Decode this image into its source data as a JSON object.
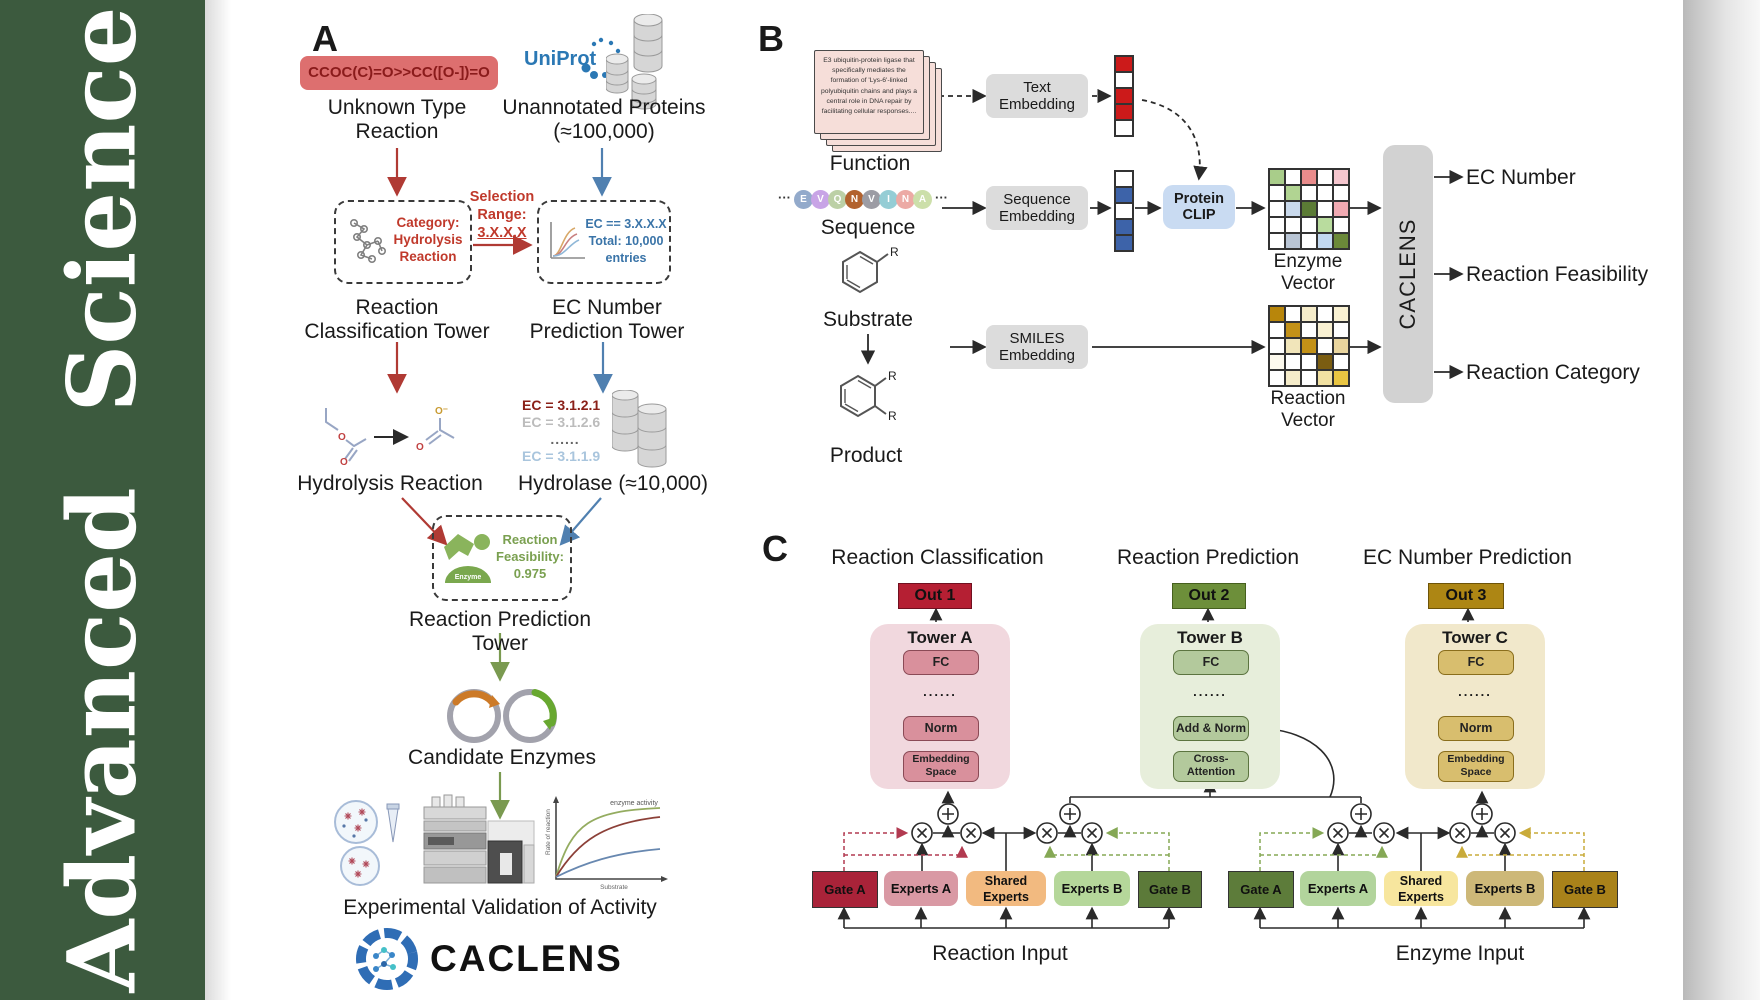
{
  "colors": {
    "sidebar": "#3c5a3e",
    "smilesBox": "#dd6f6f",
    "smilesText": "#8a1b1b",
    "arrowRed": "#b03a34",
    "arrowBlue": "#5080b0",
    "arrowGreen": "#7a9a50",
    "uniprot": "#2b78b4",
    "ecRed": "#8a2018",
    "ecGray": "#bcbcbc",
    "ecBlue": "#a9c5dd",
    "feasGreen": "#7aa050",
    "outA": "#b51f33",
    "outB": "#6d8f3a",
    "outC": "#ad8614",
    "towerA": "#f1d8de",
    "towerABox": "#d9909c",
    "towerABorder": "#8a4a56",
    "towerB": "#e7eedb",
    "towerBBox": "#b3c99c",
    "towerBBorder": "#5c7440",
    "towerC": "#f1e8cb",
    "towerCBox": "#d8be6e",
    "towerCBorder": "#8a6e1c",
    "gateA1": "#a92339",
    "expA1": "#d999a4",
    "shared1": "#f2ba80",
    "expB1": "#b5d79a",
    "gateB1": "#5c7a39",
    "gateA2": "#5d7c3a",
    "expA2": "#b2d49c",
    "shared2": "#f7e69e",
    "expB2": "#cdb878",
    "gateB2": "#a9821a",
    "dashCrimson": "#b23a50",
    "dashGreen": "#85a855",
    "dashGold": "#c9ab3a",
    "clipBox": "#c9dbf2",
    "grayBox": "#dcdcdc",
    "caclensBox": "#d2d2d2"
  },
  "sidebar": {
    "title": "Advanced  Science"
  },
  "panelA": {
    "label": "A",
    "smiles": "CCOC(C)=O>>CC([O-])=O",
    "unknown_reaction": "Unknown Type Reaction",
    "uniprot": "UniProt",
    "unannotated_proteins": "Unannotated Proteins (≈100,000)",
    "selection_lines": [
      "Selection",
      "Range:",
      "3.X.X.X"
    ],
    "category_text": "Category: Hydrolysis Reaction",
    "ec_box_lines": [
      "EC == 3.X.X.X",
      "Total: 10,000",
      "entries"
    ],
    "classification_tower": "Reaction Classification Tower",
    "ec_prediction_tower": "EC Number Prediction Tower",
    "hydrolysis_reaction": "Hydrolysis Reaction",
    "ec_list": [
      "EC = 3.1.2.1",
      "EC = 3.1.2.6",
      "......",
      "EC = 3.1.1.9"
    ],
    "hydrolase": "Hydrolase (≈10,000)",
    "enzyme_badge": "Enzyme",
    "feasibility_text": "Reaction Feasibility: 0.975",
    "reaction_prediction_tower": "Reaction Prediction Tower",
    "candidate_enzymes": "Candidate Enzymes",
    "plot": {
      "annotation": "enzyme activity",
      "ylabel": "Rate of reaction",
      "xlabel": "Substrate"
    },
    "validation": "Experimental Validation of Activity",
    "caclens_wordmark": "CACLENS"
  },
  "panelB": {
    "label": "B",
    "function_card": "E3 ubiquitin-protein ligase that specifically mediates the formation of 'Lys-6'-linked polyubiquitin chains and plays a central role in DNA repair by facilitating cellular responses....",
    "function_label": "Function",
    "ellipsis": "···",
    "sequence_chips": [
      {
        "t": "E",
        "c": "#93aacb"
      },
      {
        "t": "V",
        "c": "#c8a4e6"
      },
      {
        "t": "Q",
        "c": "#bcd0a6"
      },
      {
        "t": "N",
        "c": "#b2622e"
      },
      {
        "t": "V",
        "c": "#9c9ca4"
      },
      {
        "t": "I",
        "c": "#95cdd5"
      },
      {
        "t": "N",
        "c": "#ecaaa5"
      },
      {
        "t": "A",
        "c": "#ccdfaa"
      }
    ],
    "sequence_label": "Sequence",
    "substrate_label": "Substrate",
    "product_label": "Product",
    "r": "R",
    "text_embedding": "Text Embedding",
    "sequence_embedding": "Sequence Embedding",
    "smiles_embedding": "SMILES Embedding",
    "protein_clip": "Protein CLIP",
    "text_vector": [
      [
        "#cc1a1a"
      ],
      [
        "#ffffff"
      ],
      [
        "#cc1a1a"
      ],
      [
        "#cc1a1a"
      ],
      [
        "#ffffff"
      ]
    ],
    "sequence_vector": [
      [
        "#ffffff"
      ],
      [
        "#3d63a9"
      ],
      [
        "#ffffff"
      ],
      [
        "#3d63a9"
      ],
      [
        "#3d63a9"
      ]
    ],
    "enzyme_vector_grid": [
      [
        "#a9cd8a",
        "#ffffff",
        "#e98c8c",
        "#ffffff",
        "#f5c6ce"
      ],
      [
        "#ffffff",
        "#b1d492",
        "#ffffff",
        "#ffffff",
        "#ffffff"
      ],
      [
        "#ffffff",
        "#c9d9ec",
        "#5b7b35",
        "#ffffff",
        "#f0aab2"
      ],
      [
        "#ffffff",
        "#ffffff",
        "#ffffff",
        "#b9dc9e",
        "#ffffff"
      ],
      [
        "#ffffff",
        "#b9c5d5",
        "#ffffff",
        "#c2d9f1",
        "#6b8939"
      ]
    ],
    "reaction_vector_grid": [
      [
        "#b8860b",
        "#ffffff",
        "#f5ecca",
        "#ffffff",
        "#f9f1d2"
      ],
      [
        "#ffffff",
        "#c39117",
        "#ffffff",
        "#f9f1d2",
        "#ffffff"
      ],
      [
        "#ffffff",
        "#f1e5ba",
        "#c39117",
        "#ffffff",
        "#e9d59e"
      ],
      [
        "#fdfaee",
        "#ffffff",
        "#ffffff",
        "#7b5d11",
        "#ffffff"
      ],
      [
        "#ffffff",
        "#f5ecca",
        "#ffffff",
        "#f1e1a2",
        "#e9c542"
      ]
    ],
    "enzyme_vector_label": "Enzyme Vector",
    "reaction_vector_label": "Reaction Vector",
    "caclens": "CACLENS",
    "outputs": [
      "EC Number",
      "Reaction Feasibility",
      "Reaction Category"
    ]
  },
  "panelC": {
    "label": "C",
    "columns": [
      {
        "title": "Reaction Classification",
        "out": "Out 1",
        "tower": "Tower A",
        "layers": [
          "FC",
          "......",
          "Norm",
          "Embedding Space"
        ]
      },
      {
        "title": "Reaction Prediction",
        "out": "Out 2",
        "tower": "Tower B",
        "layers": [
          "FC",
          "......",
          "Add & Norm",
          "Cross-Attention"
        ]
      },
      {
        "title": "EC Number Prediction",
        "out": "Out 3",
        "tower": "Tower C",
        "layers": [
          "FC",
          "......",
          "Norm",
          "Embedding Space"
        ]
      }
    ],
    "groups": [
      {
        "gateA": "Gate A",
        "expertsA": "Experts A",
        "shared": "Shared Experts",
        "expertsB": "Experts B",
        "gateB": "Gate B",
        "input": "Reaction Input"
      },
      {
        "gateA": "Gate A",
        "expertsA": "Experts A",
        "shared": "Shared Experts",
        "expertsB": "Experts B",
        "gateB": "Gate B",
        "input": "Enzyme Input"
      }
    ]
  }
}
